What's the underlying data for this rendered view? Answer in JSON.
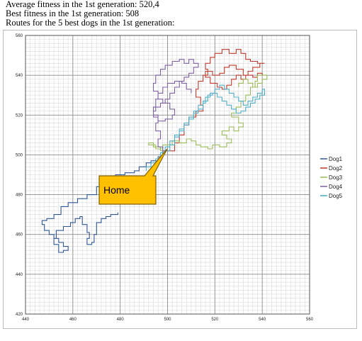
{
  "header": {
    "lines": [
      "Average fitness in the 1st generation: 520,4",
      "Best fitness in the 1st generation: 508",
      "Routes for the 5 best dogs in the 1st generation:"
    ]
  },
  "chart_data": {
    "type": "line",
    "title": "",
    "xlabel": "",
    "ylabel": "",
    "xlim": [
      440,
      560
    ],
    "ylim": [
      420,
      560
    ],
    "xticks": [
      440,
      460,
      480,
      500,
      520,
      540,
      560
    ],
    "yticks": [
      420,
      440,
      460,
      480,
      500,
      520,
      540,
      560
    ],
    "grid": "minor every 2, major every 20",
    "legend_position": "right",
    "annotation": {
      "text": "Home",
      "points_to": [
        500,
        501
      ]
    },
    "series": [
      {
        "name": "Dog1",
        "color": "#2F5597",
        "points": [
          [
            500,
            502
          ],
          [
            498,
            499
          ],
          [
            496,
            497
          ],
          [
            493,
            496
          ],
          [
            491,
            494
          ],
          [
            488,
            492
          ],
          [
            486,
            491
          ],
          [
            482,
            490
          ],
          [
            478,
            488
          ],
          [
            474,
            487
          ],
          [
            472,
            484
          ],
          [
            470,
            480
          ],
          [
            466,
            478
          ],
          [
            462,
            476
          ],
          [
            458,
            474
          ],
          [
            455,
            470
          ],
          [
            452,
            468
          ],
          [
            449,
            467
          ],
          [
            447,
            465
          ],
          [
            448,
            462
          ],
          [
            450,
            460
          ],
          [
            452,
            458
          ],
          [
            454,
            456
          ],
          [
            456,
            454
          ],
          [
            458,
            452
          ],
          [
            456,
            451
          ],
          [
            454,
            455
          ],
          [
            452,
            458
          ],
          [
            453,
            462
          ],
          [
            456,
            464
          ],
          [
            459,
            466
          ],
          [
            461,
            468
          ],
          [
            463,
            469
          ],
          [
            464,
            465
          ],
          [
            466,
            461
          ],
          [
            467,
            458
          ],
          [
            466,
            455
          ],
          [
            468,
            456
          ],
          [
            469,
            460
          ],
          [
            470,
            466
          ],
          [
            472,
            468
          ],
          [
            474,
            469
          ],
          [
            476,
            470
          ],
          [
            479,
            471
          ]
        ]
      },
      {
        "name": "Dog2",
        "color": "#C0392B",
        "points": [
          [
            500,
            502
          ],
          [
            503,
            506
          ],
          [
            505,
            510
          ],
          [
            507,
            515
          ],
          [
            509,
            519
          ],
          [
            512,
            522
          ],
          [
            515,
            525
          ],
          [
            514,
            529
          ],
          [
            512,
            533
          ],
          [
            513,
            537
          ],
          [
            515,
            540
          ],
          [
            517,
            543
          ],
          [
            516,
            546
          ],
          [
            518,
            549
          ],
          [
            520,
            551
          ],
          [
            523,
            553
          ],
          [
            526,
            551
          ],
          [
            529,
            553
          ],
          [
            531,
            551
          ],
          [
            533,
            548
          ],
          [
            535,
            547
          ],
          [
            538,
            546
          ],
          [
            541,
            546
          ],
          [
            539,
            544
          ],
          [
            536,
            542
          ],
          [
            534,
            540
          ],
          [
            532,
            543
          ],
          [
            529,
            545
          ],
          [
            526,
            544
          ],
          [
            524,
            541
          ],
          [
            522,
            540
          ],
          [
            519,
            542
          ],
          [
            516,
            539
          ],
          [
            518,
            536
          ],
          [
            521,
            534
          ],
          [
            523,
            533
          ],
          [
            525,
            535
          ],
          [
            527,
            538
          ],
          [
            529,
            540
          ],
          [
            531,
            538
          ],
          [
            533,
            540
          ],
          [
            536,
            539
          ],
          [
            538,
            541
          ],
          [
            540,
            540
          ]
        ]
      },
      {
        "name": "Dog3",
        "color": "#9BBB59",
        "points": [
          [
            500,
            502
          ],
          [
            497,
            504
          ],
          [
            494,
            506
          ],
          [
            492,
            505
          ],
          [
            495,
            503
          ],
          [
            498,
            505
          ],
          [
            502,
            507
          ],
          [
            505,
            506
          ],
          [
            508,
            508
          ],
          [
            510,
            507
          ],
          [
            512,
            505
          ],
          [
            514,
            504
          ],
          [
            517,
            503
          ],
          [
            519,
            505
          ],
          [
            522,
            504
          ],
          [
            525,
            506
          ],
          [
            527,
            508
          ],
          [
            525,
            510
          ],
          [
            523,
            512
          ],
          [
            526,
            514
          ],
          [
            528,
            512
          ],
          [
            530,
            514
          ],
          [
            532,
            516
          ],
          [
            530,
            519
          ],
          [
            527,
            521
          ],
          [
            529,
            524
          ],
          [
            531,
            527
          ],
          [
            533,
            530
          ],
          [
            535,
            534
          ],
          [
            537,
            537
          ],
          [
            538,
            540
          ],
          [
            541,
            540
          ],
          [
            542,
            538
          ],
          [
            540,
            536
          ],
          [
            538,
            534
          ],
          [
            536,
            536
          ],
          [
            534,
            538
          ],
          [
            532,
            536
          ],
          [
            530,
            534
          ]
        ]
      },
      {
        "name": "Dog4",
        "color": "#7D60A0",
        "points": [
          [
            500,
            502
          ],
          [
            498,
            504
          ],
          [
            496,
            508
          ],
          [
            497,
            512
          ],
          [
            495,
            516
          ],
          [
            496,
            520
          ],
          [
            494,
            524
          ],
          [
            495,
            528
          ],
          [
            496,
            532
          ],
          [
            494,
            536
          ],
          [
            495,
            540
          ],
          [
            497,
            543
          ],
          [
            499,
            545
          ],
          [
            502,
            547
          ],
          [
            505,
            548
          ],
          [
            507,
            546
          ],
          [
            509,
            548
          ],
          [
            511,
            546
          ],
          [
            513,
            544
          ],
          [
            511,
            541
          ],
          [
            509,
            539
          ],
          [
            507,
            537
          ],
          [
            505,
            534
          ],
          [
            503,
            531
          ],
          [
            501,
            528
          ],
          [
            499,
            526
          ],
          [
            497,
            524
          ],
          [
            495,
            522
          ],
          [
            494,
            519
          ],
          [
            496,
            517
          ],
          [
            499,
            518
          ],
          [
            502,
            520
          ],
          [
            503,
            523
          ],
          [
            501,
            526
          ],
          [
            498,
            528
          ],
          [
            496,
            531
          ],
          [
            498,
            534
          ],
          [
            500,
            536
          ],
          [
            503,
            537
          ],
          [
            506,
            536
          ],
          [
            508,
            533
          ],
          [
            510,
            531
          ]
        ]
      },
      {
        "name": "Dog5",
        "color": "#4BACC6",
        "points": [
          [
            500,
            502
          ],
          [
            501,
            505
          ],
          [
            503,
            509
          ],
          [
            505,
            512
          ],
          [
            507,
            515
          ],
          [
            509,
            518
          ],
          [
            511,
            521
          ],
          [
            513,
            523
          ],
          [
            515,
            526
          ],
          [
            516,
            529
          ],
          [
            518,
            531
          ],
          [
            520,
            533
          ],
          [
            522,
            535
          ],
          [
            524,
            533
          ],
          [
            526,
            531
          ],
          [
            528,
            529
          ],
          [
            530,
            527
          ],
          [
            532,
            525
          ],
          [
            534,
            527
          ],
          [
            536,
            529
          ],
          [
            538,
            531
          ],
          [
            540,
            533
          ],
          [
            541,
            530
          ],
          [
            539,
            528
          ],
          [
            537,
            526
          ],
          [
            535,
            524
          ],
          [
            533,
            522
          ],
          [
            531,
            521
          ],
          [
            529,
            523
          ],
          [
            527,
            525
          ],
          [
            525,
            527
          ],
          [
            523,
            529
          ],
          [
            521,
            531
          ],
          [
            519,
            530
          ],
          [
            517,
            527
          ],
          [
            515,
            525
          ],
          [
            513,
            522
          ],
          [
            511,
            519
          ],
          [
            509,
            516
          ],
          [
            507,
            513
          ],
          [
            505,
            510
          ],
          [
            503,
            507
          ],
          [
            501,
            504
          ],
          [
            499,
            501
          ],
          [
            497,
            498
          ],
          [
            495,
            496
          ],
          [
            493,
            494
          ],
          [
            491,
            492
          ]
        ]
      }
    ]
  }
}
